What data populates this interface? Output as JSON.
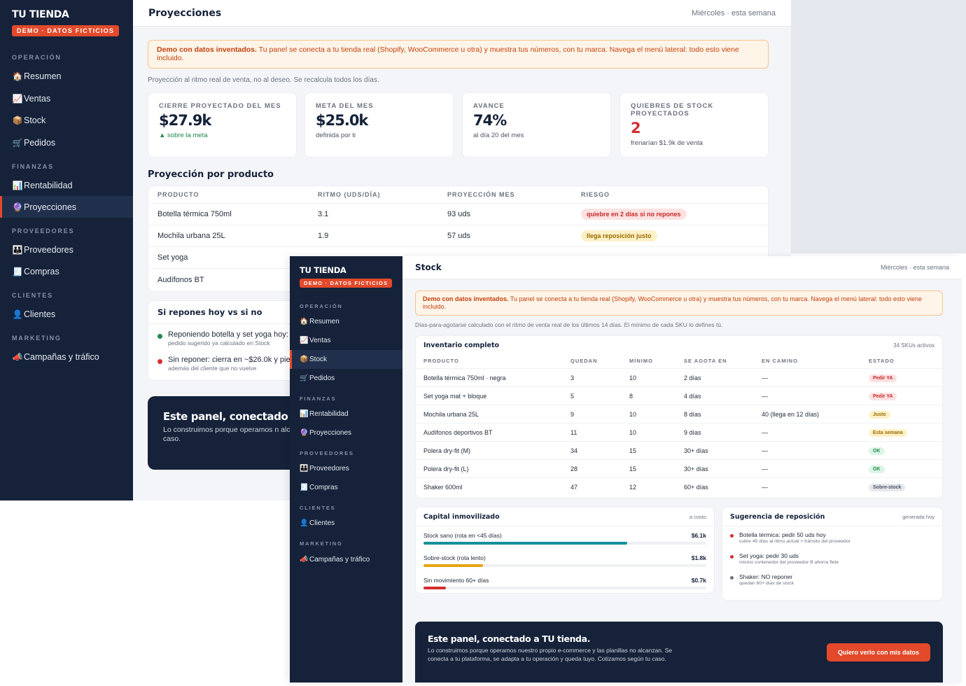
{
  "windowA": {
    "brand": "TU TIENDA",
    "demo_badge": "DEMO · DATOS FICTICIOS",
    "sidebar": {
      "sections": [
        {
          "label": "OPERACIÓN"
        },
        {
          "label": "FINANZAS"
        },
        {
          "label": "PROVEEDORES"
        },
        {
          "label": "CLIENTES"
        },
        {
          "label": "MARKETING"
        }
      ],
      "items": [
        {
          "label": "Resumen",
          "icon": "🏠",
          "icon_name": "house-icon"
        },
        {
          "label": "Ventas",
          "icon": "📈",
          "icon_name": "chart-up-icon"
        },
        {
          "label": "Stock",
          "icon": "📦",
          "icon_name": "package-icon"
        },
        {
          "label": "Pedidos",
          "icon": "🛒",
          "icon_name": "cart-icon"
        },
        {
          "label": "Rentabilidad",
          "icon": "📊",
          "icon_name": "bar-chart-icon"
        },
        {
          "label": "Proyecciones",
          "icon": "🔮",
          "icon_name": "crystal-ball-icon",
          "active": true
        },
        {
          "label": "Proveedores",
          "icon": "👪",
          "icon_name": "people-icon"
        },
        {
          "label": "Compras",
          "icon": "🧾",
          "icon_name": "receipt-icon"
        },
        {
          "label": "Clientes",
          "icon": "👤",
          "icon_name": "user-icon"
        },
        {
          "label": "Campañas y tráfico",
          "icon": "📣",
          "icon_name": "megaphone-icon"
        }
      ]
    },
    "header": {
      "title": "Proyecciones",
      "meta": "Miércoles · esta semana"
    },
    "notice": {
      "strong": "Demo con datos inventados.",
      "text": " Tu panel se conecta a tu tienda real (Shopify, WooCommerce u otra) y muestra tus números, con tu marca. Navega el menú lateral: todo esto viene incluido."
    },
    "subtitle": "Proyección al ritmo real de venta, no al deseo. Se recalcula todos los días.",
    "kpis": [
      {
        "label": "CIERRE PROYECTADO DEL MES",
        "value": "$27.9k",
        "note": "▲ sobre la meta",
        "note_color": "#1f8a4c"
      },
      {
        "label": "META DEL MES",
        "value": "$25.0k",
        "note": "definida por ti"
      },
      {
        "label": "AVANCE",
        "value": "74%",
        "note": "al día 20 del mes"
      },
      {
        "label": "QUIEBRES DE STOCK PROYECTADOS",
        "value": "2",
        "value_color": "#d32f2f",
        "note": "frenarían $1.9k de venta"
      }
    ],
    "product_section_title": "Proyección por producto",
    "product_table": {
      "columns": [
        "PRODUCTO",
        "RITMO (UDS/DÍA)",
        "PROYECCIÓN MES",
        "RIESGO"
      ],
      "rows": [
        {
          "producto": "Botella térmica 750ml",
          "ritmo": "3.1",
          "proyeccion": "93 uds",
          "riesgo": "quiebre en 2 días si no repones",
          "riesgo_tone": "red"
        },
        {
          "producto": "Mochila urbana 25L",
          "ritmo": "1.9",
          "proyeccion": "57 uds",
          "riesgo": "llega reposición justo",
          "riesgo_tone": "amber"
        },
        {
          "producto": "Set yoga",
          "ritmo": "",
          "proyeccion": "",
          "riesgo": ""
        },
        {
          "producto": "Audífonos BT",
          "ritmo": "",
          "proyeccion": "",
          "riesgo": ""
        }
      ]
    },
    "comparison": {
      "title": "Si repones hoy vs si no",
      "items": [
        {
          "text": "Reponiendo botella y set yoga hoy: c",
          "sub": "pedido sugerido ya calculado en Stock",
          "dot": "#1f8a4c"
        },
        {
          "text": "Sin reponer: cierra en ~$26.0k y pier",
          "sub": "además del cliente que no vuelve",
          "dot": "#d32f2f"
        }
      ]
    },
    "cta": {
      "title": "Este panel, conectado",
      "text": "Lo construimos porque operamos n alcanzan. Se conecta a tu plataform según tu caso."
    }
  },
  "windowB": {
    "brand": "TU TIENDA",
    "demo_badge": "DEMO · DATOS FICTICIOS",
    "sidebar": {
      "sections": [
        {
          "label": "OPERACIÓN"
        },
        {
          "label": "FINANZAS"
        },
        {
          "label": "PROVEEDORES"
        },
        {
          "label": "CLIENTES"
        },
        {
          "label": "MARKETING"
        }
      ],
      "items": [
        {
          "label": "Resumen",
          "icon": "🏠",
          "icon_name": "house-icon"
        },
        {
          "label": "Ventas",
          "icon": "📈",
          "icon_name": "chart-up-icon"
        },
        {
          "label": "Stock",
          "icon": "📦",
          "icon_name": "package-icon",
          "active": true
        },
        {
          "label": "Pedidos",
          "icon": "🛒",
          "icon_name": "cart-icon"
        },
        {
          "label": "Rentabilidad",
          "icon": "📊",
          "icon_name": "bar-chart-icon"
        },
        {
          "label": "Proyecciones",
          "icon": "🔮",
          "icon_name": "crystal-ball-icon"
        },
        {
          "label": "Proveedores",
          "icon": "👪",
          "icon_name": "people-icon"
        },
        {
          "label": "Compras",
          "icon": "🧾",
          "icon_name": "receipt-icon"
        },
        {
          "label": "Clientes",
          "icon": "👤",
          "icon_name": "user-icon"
        },
        {
          "label": "Campañas y tráfico",
          "icon": "📣",
          "icon_name": "megaphone-icon"
        }
      ]
    },
    "header": {
      "title": "Stock",
      "meta": "Miércoles · esta semana"
    },
    "notice": {
      "strong": "Demo con datos inventados.",
      "text": " Tu panel se conecta a tu tienda real (Shopify, WooCommerce u otra) y muestra tus números, con tu marca. Navega el menú lateral: todo esto viene incluido."
    },
    "subtitle": "Días-para-agotarse calculado con el ritmo de venta real de los últimos 14 días. El mínimo de cada SKU lo defines tú.",
    "inventory": {
      "title": "Inventario completo",
      "meta": "34 SKUs activos",
      "columns": [
        "PRODUCTO",
        "QUEDAN",
        "MÍNIMO",
        "SE AGOTA EN",
        "EN CAMINO",
        "ESTADO"
      ],
      "rows": [
        {
          "producto": "Botella térmica 750ml · negra",
          "quedan": "3",
          "minimo": "10",
          "agota": "2 días",
          "camino": "—",
          "estado": "Pedir YA",
          "tone": "red"
        },
        {
          "producto": "Set yoga mat + bloque",
          "quedan": "5",
          "minimo": "8",
          "agota": "4 días",
          "camino": "—",
          "estado": "Pedir YA",
          "tone": "red"
        },
        {
          "producto": "Mochila urbana 25L",
          "quedan": "9",
          "minimo": "10",
          "agota": "8 días",
          "camino": "40 (llega en 12 días)",
          "estado": "Justo",
          "tone": "amber"
        },
        {
          "producto": "Audífonos deportivos BT",
          "quedan": "11",
          "minimo": "10",
          "agota": "9 días",
          "camino": "—",
          "estado": "Esta semana",
          "tone": "amber"
        },
        {
          "producto": "Polera dry-fit (M)",
          "quedan": "34",
          "minimo": "15",
          "agota": "30+ días",
          "camino": "—",
          "estado": "OK",
          "tone": "green"
        },
        {
          "producto": "Polera dry-fit (L)",
          "quedan": "28",
          "minimo": "15",
          "agota": "30+ días",
          "camino": "—",
          "estado": "OK",
          "tone": "green"
        },
        {
          "producto": "Shaker 600ml",
          "quedan": "47",
          "minimo": "12",
          "agota": "60+ días",
          "camino": "—",
          "estado": "Sobre-stock",
          "tone": "gray"
        }
      ]
    },
    "capital": {
      "title": "Capital inmovilizado",
      "meta": "a costo",
      "bars": [
        {
          "label": "Stock sano (rota en <45 días)",
          "value": "$6.1k",
          "fraction": 0.72,
          "color": "#14919b"
        },
        {
          "label": "Sobre-stock (rota lento)",
          "value": "$1.8k",
          "fraction": 0.21,
          "color": "#e6a40f"
        },
        {
          "label": "Sin movimiento 60+ días",
          "value": "$0.7k",
          "fraction": 0.08,
          "color": "#d32f2f"
        }
      ]
    },
    "suggestion": {
      "title": "Sugerencia de reposición",
      "meta": "generada hoy",
      "items": [
        {
          "text": "Botella térmica: pedir 50 uds hoy",
          "sub": "cubre 45 días al ritmo actual + tránsito del proveedor",
          "dot": "#d32f2f"
        },
        {
          "text": "Set yoga: pedir 30 uds",
          "sub": "mismo contenedor del proveedor B ahorra flete",
          "dot": "#d32f2f"
        },
        {
          "text": "Shaker: NO reponer",
          "sub": "quedan 60+ días de stock",
          "dot": "#6b7280"
        }
      ]
    },
    "cta": {
      "title": "Este panel, conectado a TU tienda.",
      "text": "Lo construimos porque operamos nuestro propio e-commerce y las planillas no alcanzan. Se conecta a tu plataforma, se adapta a tu operación y queda tuyo. Cotizamos según tu caso.",
      "button": "Quiero verlo con mis datos"
    }
  }
}
